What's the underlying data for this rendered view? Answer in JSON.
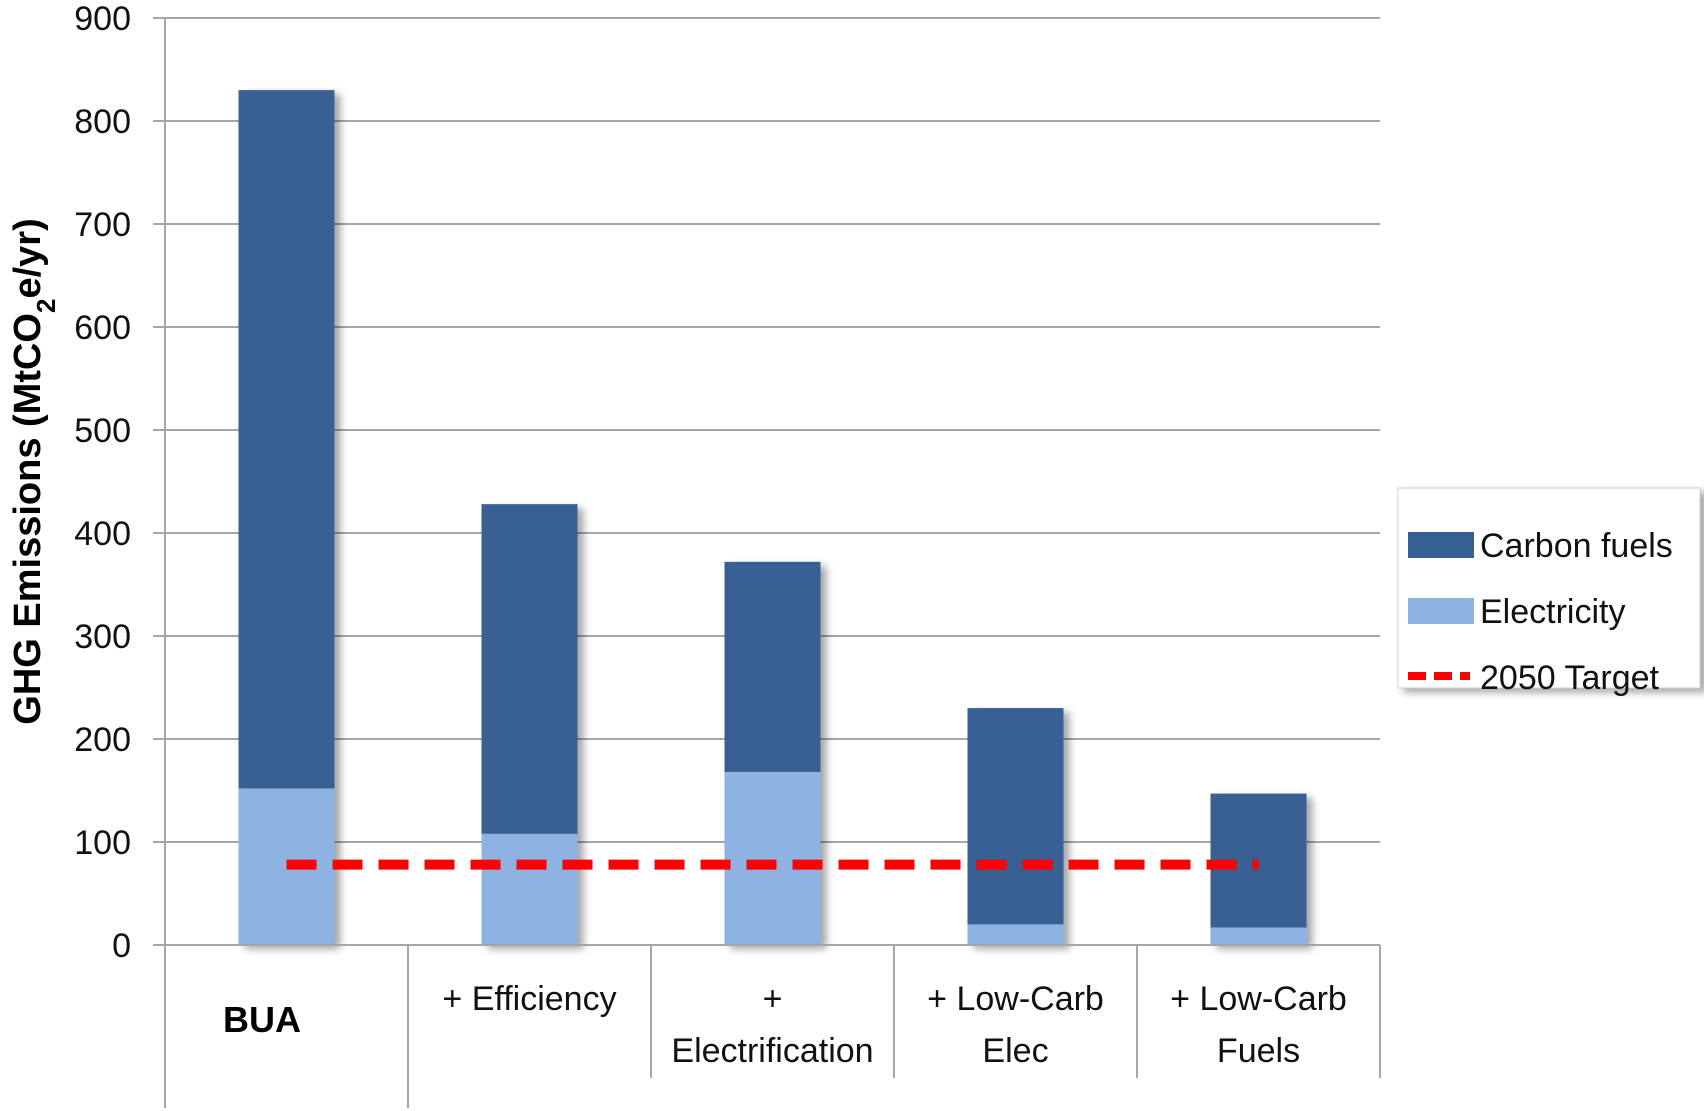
{
  "chart_data": {
    "type": "bar",
    "stacked": true,
    "categories": [
      [
        "BUA"
      ],
      [
        "+ Efficiency"
      ],
      [
        "+",
        "Electrification"
      ],
      [
        "+ Low-Carb",
        "Elec"
      ],
      [
        "+ Low-Carb",
        "Fuels"
      ]
    ],
    "category_bold": [
      true,
      false,
      false,
      false,
      false
    ],
    "series": [
      {
        "name": "Electricity",
        "values": [
          152,
          108,
          168,
          20,
          17
        ],
        "color": "#8db3e2"
      },
      {
        "name": "Carbon fuels",
        "values": [
          678,
          320,
          204,
          210,
          130
        ],
        "color": "#376092"
      }
    ],
    "target": {
      "name": "2050 Target",
      "value": 78,
      "color": "#ff0000"
    },
    "ylabel": "GHG Emissions (MtCO2e/yr)",
    "ylabel_parts": {
      "before": "GHG Emissions (MtCO",
      "sub": "2",
      "after": "e/yr)"
    },
    "ylim": [
      0,
      900
    ],
    "yticks": [
      0,
      100,
      200,
      300,
      400,
      500,
      600,
      700,
      800,
      900
    ],
    "grid": true,
    "legend": {
      "placement": "right",
      "entries": [
        "Carbon fuels",
        "Electricity",
        "2050 Target"
      ]
    }
  }
}
